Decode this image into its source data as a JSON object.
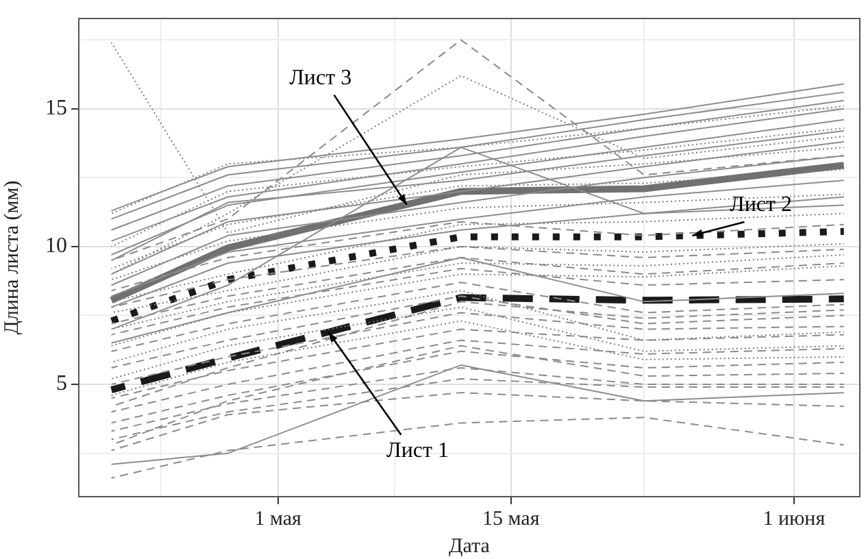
{
  "chart_data": {
    "type": "line",
    "xlabel": "Дата",
    "ylabel": "Длина листа (мм)",
    "x": [
      "--04-21",
      "--04-28",
      "--05-12",
      "--05-23",
      "--06-04"
    ],
    "xlim": [
      "--04-19",
      "--06-05"
    ],
    "xticks": [
      {
        "value": "--04-24",
        "label": null
      },
      {
        "value": "--05-01",
        "label": "1 мая"
      },
      {
        "value": "--05-08",
        "label": null
      },
      {
        "value": "--05-15",
        "label": "15 мая"
      },
      {
        "value": "--05-23",
        "label": null
      },
      {
        "value": "--06-01",
        "label": "1 июня"
      }
    ],
    "ylim": [
      0.9,
      18.3
    ],
    "yticks": [
      {
        "value": 2.5,
        "label": null
      },
      5,
      {
        "value": 7.5,
        "label": null
      },
      10,
      {
        "value": 12.5,
        "label": null
      },
      15,
      {
        "value": 17.5,
        "label": null
      }
    ],
    "grid": true,
    "legend": false,
    "marker": "none",
    "series": [
      {
        "color": "#8c8c8c",
        "line_style": "solid",
        "values": [
          11.3,
          12.9,
          13.9,
          14.8,
          15.9
        ]
      },
      {
        "color": "#8c8c8c",
        "line_style": "solid",
        "values": [
          11.0,
          12.6,
          13.6,
          14.6,
          15.6
        ]
      },
      {
        "color": "#8c8c8c",
        "line_style": "solid",
        "values": [
          10.6,
          12.2,
          13.3,
          14.3,
          15.3
        ]
      },
      {
        "color": "#8c8c8c",
        "line_style": "solid",
        "values": [
          10.2,
          11.8,
          13.0,
          14.0,
          15.0
        ]
      },
      {
        "color": "#8c8c8c",
        "line_style": "solid",
        "values": [
          9.7,
          11.5,
          12.7,
          13.6,
          14.6
        ]
      },
      {
        "color": "#8c8c8c",
        "line_style": "solid",
        "values": [
          9.5,
          11.6,
          12.4,
          13.3,
          14.2
        ]
      },
      {
        "color": "#8c8c8c",
        "line_style": "solid",
        "values": [
          9.0,
          10.9,
          12.0,
          12.9,
          13.8
        ]
      },
      {
        "color": "#8c8c8c",
        "line_style": "solid",
        "values": [
          8.6,
          10.4,
          11.6,
          12.5,
          13.3
        ]
      },
      {
        "color": "#8c8c8c",
        "line_style": "solid",
        "values": [
          8.2,
          9.8,
          11.0,
          11.8,
          12.4
        ]
      },
      {
        "color": "#8c8c8c",
        "line_style": "solid",
        "values": [
          7.8,
          9.4,
          10.6,
          11.2,
          11.8
        ]
      },
      {
        "color": "#8c8c8c",
        "line_style": "solid",
        "values": [
          2.1,
          2.5,
          5.7,
          4.4,
          4.7
        ]
      },
      {
        "color": "#8c8c8c",
        "line_style": "solid",
        "values": [
          6.5,
          7.6,
          9.6,
          8.0,
          8.3
        ]
      },
      {
        "color": "#8c8c8c",
        "line_style": "solid",
        "values": [
          7.0,
          8.6,
          13.6,
          11.2,
          11.5
        ]
      },
      {
        "color": "#7a7a7a",
        "line_style": "dotted",
        "values": [
          17.4,
          10.5,
          12.6,
          13.0,
          13.6
        ]
      },
      {
        "color": "#7a7a7a",
        "line_style": "dotted",
        "values": [
          9.0,
          11.2,
          16.2,
          13.2,
          14.0
        ]
      },
      {
        "color": "#7a7a7a",
        "line_style": "dotted",
        "values": [
          11.2,
          13.0,
          13.6,
          14.3,
          15.1
        ]
      },
      {
        "color": "#7a7a7a",
        "line_style": "dotted",
        "values": [
          10.0,
          12.0,
          12.9,
          13.5,
          14.3
        ]
      },
      {
        "color": "#7a7a7a",
        "line_style": "dotted",
        "values": [
          9.2,
          10.8,
          12.2,
          12.3,
          12.8
        ]
      },
      {
        "color": "#7a7a7a",
        "line_style": "dotted",
        "values": [
          8.8,
          10.2,
          11.4,
          11.6,
          11.9
        ]
      },
      {
        "color": "#7a7a7a",
        "line_style": "dotted",
        "values": [
          8.0,
          9.0,
          10.8,
          10.9,
          11.2
        ]
      },
      {
        "color": "#7a7a7a",
        "line_style": "dotted",
        "values": [
          7.6,
          8.4,
          10.0,
          9.8,
          10.1
        ]
      },
      {
        "color": "#7a7a7a",
        "line_style": "dotted",
        "values": [
          7.0,
          8.0,
          9.4,
          9.3,
          9.7
        ]
      },
      {
        "color": "#7a7a7a",
        "line_style": "dotted",
        "values": [
          6.4,
          7.6,
          9.0,
          8.9,
          9.3
        ]
      },
      {
        "color": "#7a7a7a",
        "line_style": "dotted",
        "values": [
          5.8,
          7.0,
          8.4,
          6.6,
          6.9
        ]
      },
      {
        "color": "#7a7a7a",
        "line_style": "dotted",
        "values": [
          5.2,
          6.4,
          7.8,
          6.2,
          6.4
        ]
      },
      {
        "color": "#7a7a7a",
        "line_style": "dotted",
        "values": [
          4.6,
          5.8,
          7.3,
          5.9,
          6.0
        ]
      },
      {
        "color": "#8a8a8a",
        "line_style": "dashed",
        "values": [
          9.5,
          11.0,
          17.5,
          12.6,
          13.3
        ]
      },
      {
        "color": "#8a8a8a",
        "line_style": "dashed",
        "values": [
          8.4,
          9.6,
          10.9,
          10.4,
          10.8
        ]
      },
      {
        "color": "#8a8a8a",
        "line_style": "dashed",
        "values": [
          7.8,
          8.8,
          10.0,
          9.6,
          9.9
        ]
      },
      {
        "color": "#8a8a8a",
        "line_style": "dashed",
        "values": [
          7.2,
          8.2,
          9.6,
          9.0,
          9.4
        ]
      },
      {
        "color": "#8a8a8a",
        "line_style": "dashed",
        "values": [
          6.8,
          7.8,
          9.2,
          8.6,
          8.8
        ]
      },
      {
        "color": "#8a8a8a",
        "line_style": "dashed",
        "values": [
          6.2,
          7.2,
          8.7,
          7.6,
          7.9
        ]
      },
      {
        "color": "#8a8a8a",
        "line_style": "dashed",
        "values": [
          5.6,
          6.6,
          8.2,
          7.2,
          7.5
        ]
      },
      {
        "color": "#8a8a8a",
        "line_style": "dashed",
        "values": [
          5.0,
          6.0,
          7.6,
          7.0,
          7.1
        ]
      },
      {
        "color": "#8a8a8a",
        "line_style": "dashed",
        "values": [
          4.5,
          5.5,
          7.0,
          6.6,
          6.8
        ]
      },
      {
        "color": "#8a8a8a",
        "line_style": "dashed",
        "values": [
          4.0,
          5.0,
          6.6,
          6.1,
          6.3
        ]
      },
      {
        "color": "#8a8a8a",
        "line_style": "dashed",
        "values": [
          3.6,
          4.6,
          6.2,
          5.6,
          5.8
        ]
      },
      {
        "color": "#8a8a8a",
        "line_style": "dashed",
        "values": [
          3.3,
          4.3,
          5.6,
          5.0,
          5.0
        ]
      },
      {
        "color": "#8a8a8a",
        "line_style": "dashed",
        "values": [
          3.0,
          4.0,
          5.2,
          4.9,
          4.9
        ]
      },
      {
        "color": "#8a8a8a",
        "line_style": "dashed",
        "values": [
          2.6,
          3.9,
          4.7,
          4.4,
          4.2
        ]
      },
      {
        "color": "#8a8a8a",
        "line_style": "dashed",
        "values": [
          1.6,
          2.6,
          3.6,
          3.8,
          2.8
        ]
      },
      {
        "color": "#8a8a8a",
        "line_style": "dashed",
        "values": [
          2.8,
          4.4,
          6.4,
          5.3,
          5.4
        ]
      },
      {
        "color": "#8a8a8a",
        "line_style": "dashed",
        "values": [
          4.2,
          5.6,
          8.0,
          7.4,
          7.7
        ]
      },
      {
        "name": "Лист 3",
        "color": "#707070",
        "line_style": "solid",
        "values": [
          8.05,
          9.95,
          12.0,
          12.1,
          12.95
        ]
      },
      {
        "name": "Лист 2",
        "color": "#1a1a1a",
        "line_style": "dotted",
        "values": [
          7.3,
          8.8,
          10.35,
          10.35,
          10.55
        ]
      },
      {
        "name": "Лист 1",
        "color": "#1a1a1a",
        "line_style": "dashed",
        "values": [
          4.8,
          5.95,
          8.15,
          8.05,
          8.1
        ]
      }
    ]
  }
}
